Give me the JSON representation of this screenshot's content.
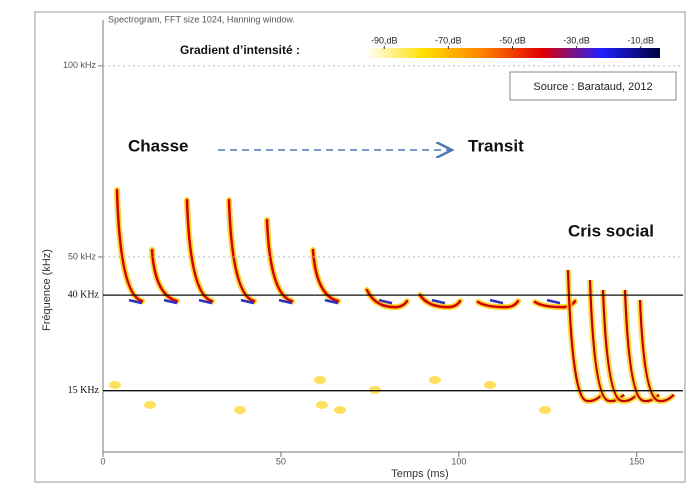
{
  "chart_data": {
    "type": "spectrogram",
    "title": "Spectrogram, FFT size 1024, Hanning window.",
    "xlabel": "Temps  (ms)",
    "ylabel": "Fréquence  (kHz)",
    "xlim": [
      0,
      163
    ],
    "xticks": [
      0,
      50,
      100,
      150
    ],
    "ylim": [
      0,
      112
    ],
    "yticks": [
      {
        "value": 100,
        "label": "100 kHz"
      },
      {
        "value": 50,
        "label": "50 kHz"
      }
    ],
    "hlines": [
      {
        "value": 40,
        "label": "40 KHz"
      },
      {
        "value": 15,
        "label": "15 KHz"
      }
    ],
    "colorbar": {
      "title": "Gradient d’intensité :",
      "clim": [
        -96,
        -4
      ],
      "colors": [
        "#ffffff",
        "#ffe000",
        "#ff8000",
        "#e00000",
        "#2020ff",
        "#000040"
      ],
      "ticks": [
        {
          "value": -90,
          "label": "-90,dB"
        },
        {
          "value": -70,
          "label": "-70,dB"
        },
        {
          "value": -50,
          "label": "-50,dB"
        },
        {
          "value": -30,
          "label": "-30,dB"
        },
        {
          "value": -10,
          "label": "-10,dB"
        }
      ]
    },
    "source": "Source : Barataud, 2012",
    "annotations": [
      "Chasse",
      "Transit",
      "Cris social"
    ]
  }
}
